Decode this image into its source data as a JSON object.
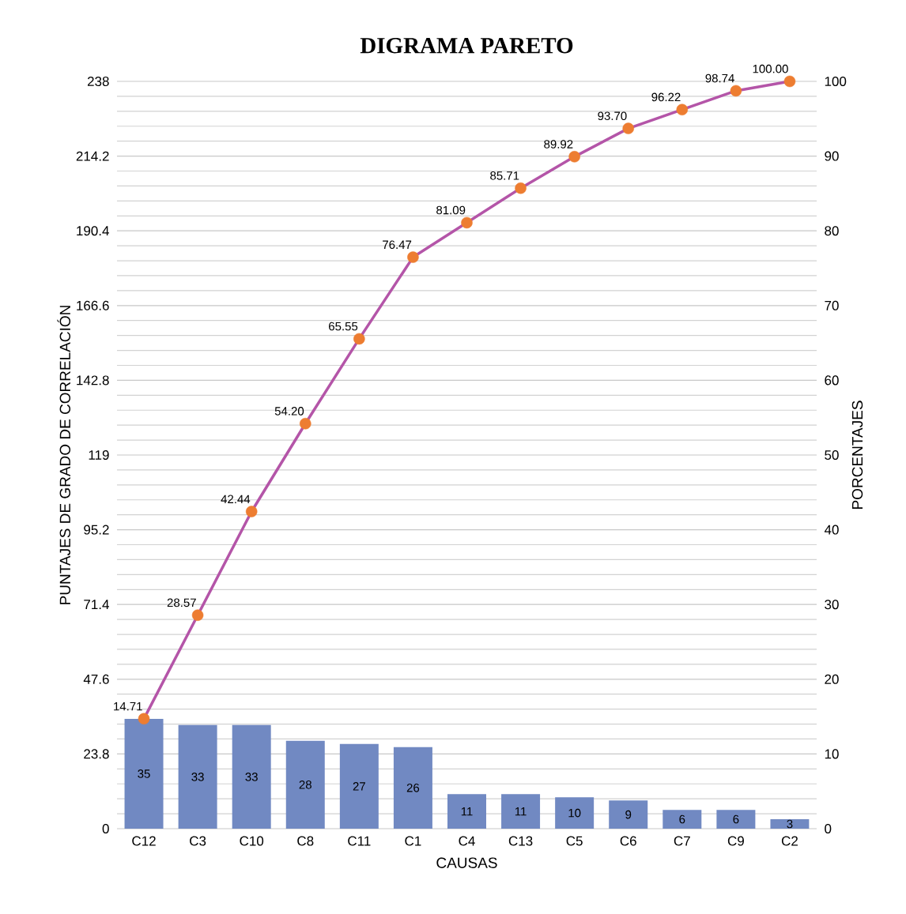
{
  "chart_data": {
    "type": "bar",
    "title": "DIGRAMA PARETO",
    "xlabel": "CAUSAS",
    "ylabel": "PUNTAJES DE GRADO DE CORRELACIÓN",
    "y2label": "PORCENTAJES",
    "categories": [
      "C12",
      "C3",
      "C10",
      "C8",
      "C11",
      "C1",
      "C4",
      "C13",
      "C5",
      "C6",
      "C7",
      "C9",
      "C2"
    ],
    "series": [
      {
        "color": "#7189c2",
        "values": [
          35,
          33,
          33,
          28,
          27,
          26,
          11,
          11,
          10,
          9,
          6,
          6,
          3
        ],
        "value_labels": [
          "35",
          "33",
          "33",
          "28",
          "27",
          "26",
          "11",
          "11",
          "10",
          "9",
          "6",
          "6",
          "3"
        ]
      },
      {
        "type": "line",
        "axis": "y2",
        "color": "#b455a8",
        "values": [
          14.71,
          28.57,
          42.44,
          54.2,
          65.55,
          76.47,
          81.09,
          85.71,
          89.92,
          93.7,
          96.22,
          98.74,
          100.0
        ],
        "value_labels": [
          "14.71",
          "28.57",
          "42.44",
          "54.20",
          "65.55",
          "76.47",
          "81.09",
          "85.71",
          "89.92",
          "93.70",
          "96.22",
          "98.74",
          "100.00"
        ]
      }
    ],
    "ylim": [
      0,
      238
    ],
    "yticks": [
      0,
      23.8,
      47.6,
      71.4,
      95.2,
      119,
      142.8,
      166.6,
      190.4,
      214.2,
      238
    ],
    "y2lim": [
      0,
      100
    ],
    "y2ticks": [
      0,
      10,
      20,
      30,
      40,
      50,
      60,
      70,
      80,
      90,
      100
    ],
    "grid": "y",
    "marker": "circle"
  }
}
